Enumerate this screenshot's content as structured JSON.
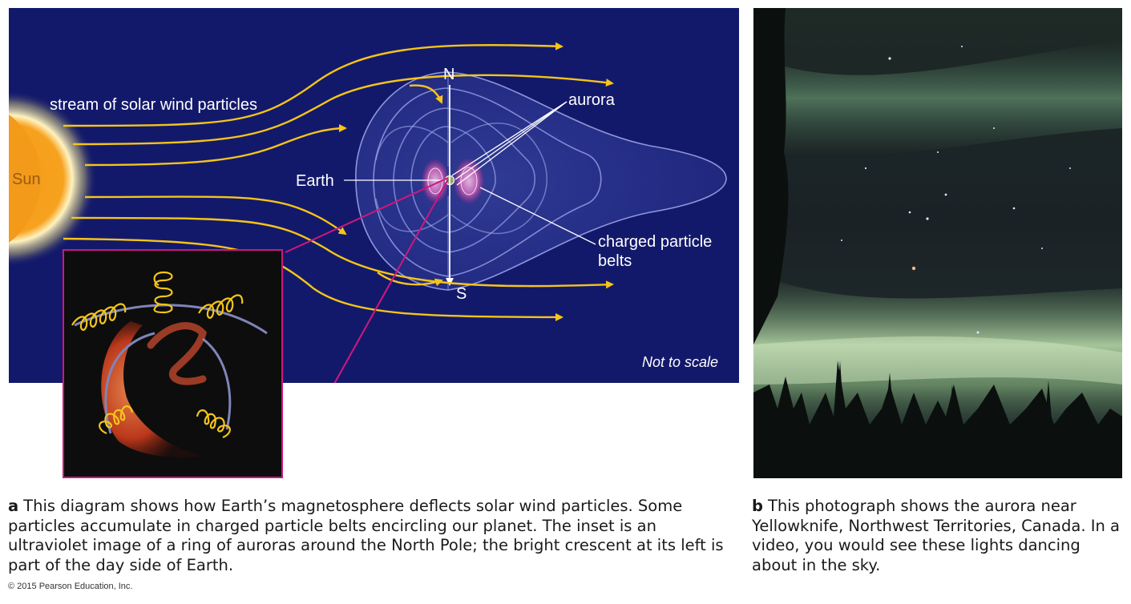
{
  "diagram": {
    "sun_label": "Sun",
    "solar_wind_label": "stream of solar wind particles",
    "earth_label": "Earth",
    "north_label": "N",
    "south_label": "S",
    "aurora_label": "aurora",
    "belts_label_line1": "charged particle",
    "belts_label_line2": "belts",
    "scale_note": "Not to scale",
    "colors": {
      "background": "#13196a",
      "sun": "#f39a1b",
      "field_lines": "#f5c518",
      "inset_border": "#d0167f",
      "magnetosphere": "#9aa3e8"
    }
  },
  "photo": {
    "description_icon": "aurora-photo"
  },
  "captions": {
    "a_letter": "a",
    "a_text": "This diagram shows how Earth’s magnetosphere deflects solar wind particles. Some particles accumulate in charged particle belts encircling our planet. The inset is an ultraviolet image of a ring of auroras around the North Pole; the bright crescent at its left is part of the day side of Earth.",
    "b_letter": "b",
    "b_text": "This photograph shows the aurora near Yellowknife, Northwest Territories, Canada. In a video, you would see these lights dancing about in the sky."
  },
  "copyright": "© 2015 Pearson Education, Inc."
}
